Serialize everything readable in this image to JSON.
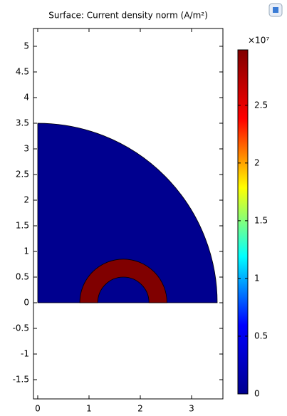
{
  "chart_data": {
    "type": "surface",
    "title": "Surface: Current density norm (A/m²)",
    "xlim": [
      -0.083,
      3.611
    ],
    "xticks": [
      0,
      1,
      2,
      3
    ],
    "ylim": [
      -1.875,
      5.347
    ],
    "yticks": [
      -1.5,
      -1,
      -0.5,
      0,
      0.5,
      1,
      1.5,
      2,
      2.5,
      3,
      3.5,
      4,
      4.5,
      5
    ],
    "domains": [
      {
        "shape": "quarter-disk",
        "center": [
          0,
          0
        ],
        "radius": 3.5,
        "value": 0,
        "color": "#00008f"
      },
      {
        "shape": "half-ring",
        "center": [
          1.67,
          0
        ],
        "inner_radius": 0.5,
        "radius": 0.85,
        "value": 2.95,
        "color": "#800000"
      }
    ],
    "colorbar": {
      "multiplier": "×10⁷",
      "lim": [
        0,
        2.98
      ],
      "ticks": [
        0,
        0.5,
        1,
        1.5,
        2,
        2.5
      ],
      "colors": [
        "#00008f",
        "#0000ff",
        "#00ffff",
        "#ffff00",
        "#ff0000",
        "#800000"
      ]
    }
  }
}
